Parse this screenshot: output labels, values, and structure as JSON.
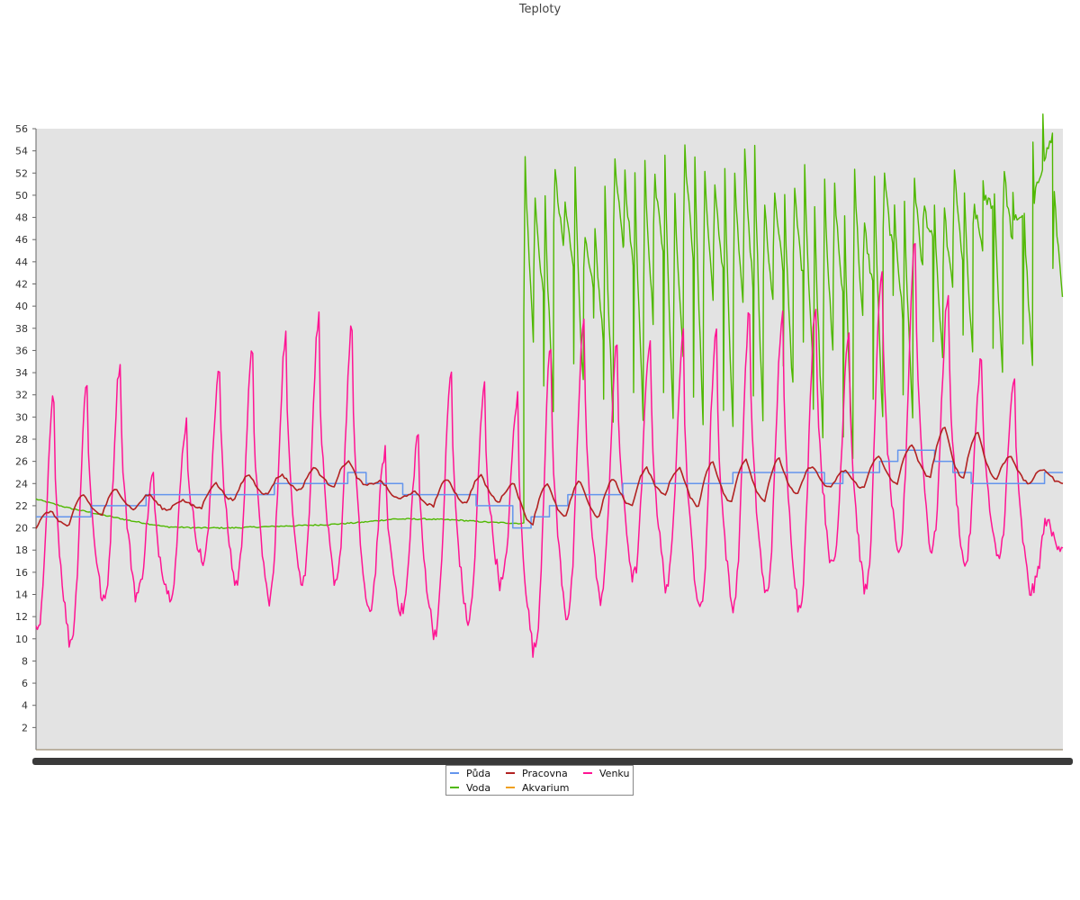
{
  "chart_data": {
    "type": "line",
    "title": "Teploty",
    "xlabel": "",
    "ylabel": "",
    "ylim": [
      0,
      56
    ],
    "y_ticks": [
      2,
      4,
      6,
      8,
      10,
      12,
      14,
      16,
      18,
      20,
      22,
      24,
      26,
      28,
      30,
      32,
      34,
      36,
      38,
      40,
      42,
      44,
      46,
      48,
      50,
      52,
      54,
      56
    ],
    "x_axis": "daily cycle, ~42 days, tick labels unreadable (overlapping)",
    "grid": false,
    "legend_position": "bottom-center",
    "series": [
      {
        "name": "Půda",
        "color": "#6495ed",
        "style": "step",
        "daily_values": [
          21,
          21,
          21,
          22,
          22,
          22,
          23,
          23,
          23,
          23,
          23,
          23,
          23,
          24,
          24,
          24,
          24,
          25,
          24,
          24,
          23,
          23,
          23,
          23,
          22,
          22,
          20,
          21,
          22,
          23,
          23,
          23,
          24,
          24,
          24,
          24,
          24,
          24,
          25,
          25,
          25,
          25,
          25,
          24,
          25,
          25,
          26,
          27,
          27,
          26,
          25,
          24,
          24,
          24,
          24,
          25
        ]
      },
      {
        "name": "Pracovna",
        "color": "#b22222",
        "daily_peaks": [
          21.5,
          23,
          23.5,
          23,
          22.5,
          24,
          24.8,
          24.8,
          25.4,
          26,
          24.2,
          23.2,
          24.4,
          24.7,
          24,
          24,
          24.2,
          24.4,
          25.4,
          25.4,
          26,
          26.2,
          26.2,
          25.6,
          25.2,
          26.5,
          27.5,
          29,
          28.6,
          26.5,
          25.3
        ],
        "daily_troughs": [
          20,
          20.2,
          21.2,
          21.7,
          21.6,
          21.8,
          22.5,
          23,
          23.4,
          23.8,
          23.8,
          22.6,
          22,
          22.2,
          22.4,
          20.4,
          21,
          21,
          22,
          23,
          22,
          22.3,
          22.5,
          23,
          23.6,
          23.6,
          24,
          24.6,
          24.5,
          24.4,
          24
        ]
      },
      {
        "name": "Venku",
        "color": "#ff1493",
        "daily_peaks": [
          32,
          33.3,
          35,
          24.8,
          29.6,
          34.7,
          36,
          37.4,
          39,
          38.3,
          27,
          28.5,
          34.2,
          32.8,
          31.8,
          36.4,
          38.8,
          36.4,
          37.2,
          37.6,
          38,
          39.6,
          39.5,
          40.4,
          38,
          43.6,
          46.2,
          41.4,
          35.5,
          33.5,
          21
        ],
        "daily_troughs": [
          10.5,
          9.8,
          13.3,
          14,
          14,
          17,
          15,
          13.6,
          15,
          14.7,
          12.4,
          12.5,
          10.6,
          11.6,
          15,
          9,
          12.1,
          13.6,
          15.6,
          14.8,
          12.6,
          13,
          14,
          12.9,
          16.5,
          14.4,
          17.4,
          18,
          16.7,
          17.2,
          14.3,
          18.2
        ]
      },
      {
        "name": "Voda",
        "color": "#4fb800",
        "before_jump": [
          22.6,
          21.8,
          21.2,
          20.6,
          20.1,
          20,
          20,
          20.1,
          20.2,
          20.3,
          20.5,
          20.8,
          20.8,
          20.7,
          20.5,
          20.4
        ],
        "after_jump_peaks": [
          54.6,
          53.5,
          51,
          53.6,
          54.8,
          54.8,
          54.3,
          54.9,
          54.5,
          53.7,
          53.6,
          52.5,
          53.7,
          54,
          54.4,
          53.6,
          53.4,
          53.9
        ],
        "after_jump_troughs": [
          30.8,
          32.8,
          29.6,
          30.2,
          30.2,
          29.8,
          28.6,
          29.9,
          32.6,
          28.7,
          26.2,
          29.6,
          30,
          34.8,
          35.4,
          34.2,
          34.6,
          41.4
        ]
      },
      {
        "name": "Akvarium",
        "color": "#f0a020",
        "constant_value": 0
      }
    ]
  }
}
